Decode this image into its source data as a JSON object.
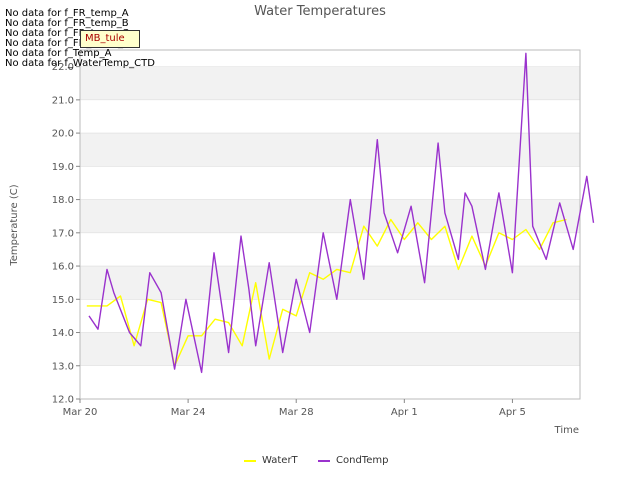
{
  "chart_data": {
    "type": "line",
    "title": "Water Temperatures",
    "xlabel": "Time",
    "ylabel": "Temperature (C)",
    "ylim": [
      12.0,
      22.5
    ],
    "xlim": [
      "2024-03-20",
      "2024-04-07 12:00"
    ],
    "x_ticks": [
      "Mar 20",
      "Mar 24",
      "Mar 28",
      "Apr 1",
      "Apr 5"
    ],
    "y_ticks": [
      "12.0",
      "13.0",
      "14.0",
      "15.0",
      "16.0",
      "17.0",
      "18.0",
      "19.0",
      "20.0",
      "21.0",
      "22.0"
    ],
    "grid": true,
    "legend_position": "bottom-center",
    "series": [
      {
        "name": "WaterT",
        "color": "#ffff00",
        "points": [
          [
            "2024-03-20 06:00",
            14.8
          ],
          [
            "2024-03-21 00:00",
            14.8
          ],
          [
            "2024-03-21 12:00",
            15.1
          ],
          [
            "2024-03-22 00:00",
            13.6
          ],
          [
            "2024-03-22 12:00",
            15.0
          ],
          [
            "2024-03-23 00:00",
            14.9
          ],
          [
            "2024-03-23 12:00",
            13.0
          ],
          [
            "2024-03-24 00:00",
            13.9
          ],
          [
            "2024-03-24 12:00",
            13.9
          ],
          [
            "2024-03-25 00:00",
            14.4
          ],
          [
            "2024-03-25 12:00",
            14.3
          ],
          [
            "2024-03-26 00:00",
            13.6
          ],
          [
            "2024-03-26 12:00",
            15.5
          ],
          [
            "2024-03-27 00:00",
            13.2
          ],
          [
            "2024-03-27 12:00",
            14.7
          ],
          [
            "2024-03-28 00:00",
            14.5
          ],
          [
            "2024-03-28 12:00",
            15.8
          ],
          [
            "2024-03-29 00:00",
            15.6
          ],
          [
            "2024-03-29 12:00",
            15.9
          ],
          [
            "2024-03-30 00:00",
            15.8
          ],
          [
            "2024-03-30 12:00",
            17.2
          ],
          [
            "2024-03-31 00:00",
            16.6
          ],
          [
            "2024-03-31 12:00",
            17.4
          ],
          [
            "2024-04-01 00:00",
            16.8
          ],
          [
            "2024-04-01 12:00",
            17.3
          ],
          [
            "2024-04-02 00:00",
            16.8
          ],
          [
            "2024-04-02 12:00",
            17.2
          ],
          [
            "2024-04-03 00:00",
            15.9
          ],
          [
            "2024-04-03 12:00",
            16.9
          ],
          [
            "2024-04-04 00:00",
            16.0
          ],
          [
            "2024-04-04 12:00",
            17.0
          ],
          [
            "2024-04-05 00:00",
            16.8
          ],
          [
            "2024-04-05 12:00",
            17.1
          ],
          [
            "2024-04-06 00:00",
            16.5
          ],
          [
            "2024-04-06 12:00",
            17.3
          ],
          [
            "2024-04-07 00:00",
            17.4
          ]
        ]
      },
      {
        "name": "CondTemp",
        "color": "#9a32cd",
        "points": [
          [
            "2024-03-20 08:00",
            14.5
          ],
          [
            "2024-03-20 16:00",
            14.1
          ],
          [
            "2024-03-21 00:00",
            15.9
          ],
          [
            "2024-03-21 06:00",
            15.2
          ],
          [
            "2024-03-21 20:00",
            14.0
          ],
          [
            "2024-03-22 06:00",
            13.6
          ],
          [
            "2024-03-22 14:00",
            15.8
          ],
          [
            "2024-03-23 00:00",
            15.2
          ],
          [
            "2024-03-23 12:00",
            12.9
          ],
          [
            "2024-03-23 22:00",
            15.0
          ],
          [
            "2024-03-24 12:00",
            12.8
          ],
          [
            "2024-03-24 23:00",
            16.4
          ],
          [
            "2024-03-25 12:00",
            13.4
          ],
          [
            "2024-03-25 23:00",
            16.9
          ],
          [
            "2024-03-26 06:00",
            15.3
          ],
          [
            "2024-03-26 12:00",
            13.6
          ],
          [
            "2024-03-27 00:00",
            16.1
          ],
          [
            "2024-03-27 12:00",
            13.4
          ],
          [
            "2024-03-28 00:00",
            15.6
          ],
          [
            "2024-03-28 12:00",
            14.0
          ],
          [
            "2024-03-29 00:00",
            17.0
          ],
          [
            "2024-03-29 12:00",
            15.0
          ],
          [
            "2024-03-30 00:00",
            18.0
          ],
          [
            "2024-03-30 12:00",
            15.6
          ],
          [
            "2024-03-31 00:00",
            19.8
          ],
          [
            "2024-03-31 06:00",
            17.6
          ],
          [
            "2024-03-31 18:00",
            16.4
          ],
          [
            "2024-04-01 06:00",
            17.8
          ],
          [
            "2024-04-01 18:00",
            15.5
          ],
          [
            "2024-04-02 06:00",
            19.7
          ],
          [
            "2024-04-02 12:00",
            17.6
          ],
          [
            "2024-04-03 00:00",
            16.2
          ],
          [
            "2024-04-03 06:00",
            18.2
          ],
          [
            "2024-04-03 12:00",
            17.8
          ],
          [
            "2024-04-04 00:00",
            15.9
          ],
          [
            "2024-04-04 12:00",
            18.2
          ],
          [
            "2024-04-05 00:00",
            15.8
          ],
          [
            "2024-04-05 12:00",
            22.4
          ],
          [
            "2024-04-05 18:00",
            17.2
          ],
          [
            "2024-04-06 06:00",
            16.2
          ],
          [
            "2024-04-06 18:00",
            17.9
          ],
          [
            "2024-04-07 06:00",
            16.5
          ],
          [
            "2024-04-07 18:00",
            18.7
          ],
          [
            "2024-04-08 00:00",
            17.3
          ]
        ]
      }
    ]
  },
  "notes": [
    "No data for f_FR_temp_A",
    "No data for f_FR_temp_B",
    "No data for f_FR_temp_C",
    "No data for f_FD_Temp_1",
    "No data for f_Temp_A",
    "No data for f_WaterTemp_CTD"
  ],
  "annotation_box": "MB_tule",
  "colors": {
    "band": "#f2f2f2",
    "grid": "#dddddd",
    "axis": "#bbbbbb"
  }
}
